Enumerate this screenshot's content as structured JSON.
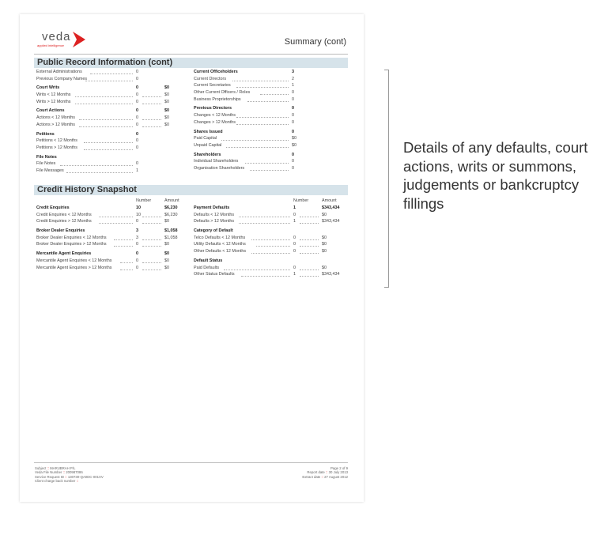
{
  "header": {
    "logo_word": "veda",
    "logo_tag": "applied intelligence",
    "title": "Summary (cont)"
  },
  "public_record": {
    "title": "Public Record Information (cont)",
    "left": [
      {
        "t": "i",
        "label": "External Administrations",
        "n": "0"
      },
      {
        "t": "i",
        "label": "Previous Company Names",
        "n": "0"
      },
      {
        "t": "h",
        "label": "Court Writs",
        "n": "0",
        "a": "$0"
      },
      {
        "t": "i",
        "label": "Writs < 12 Months",
        "n": "0",
        "a": "$0"
      },
      {
        "t": "i",
        "label": "Writs > 12 Months",
        "n": "0",
        "a": "$0"
      },
      {
        "t": "h",
        "label": "Court Actions",
        "n": "0",
        "a": "$0"
      },
      {
        "t": "i",
        "label": "Actions < 12 Months",
        "n": "0",
        "a": "$0"
      },
      {
        "t": "i",
        "label": "Actions > 12 Months",
        "n": "0",
        "a": "$0"
      },
      {
        "t": "h",
        "label": "Petitions",
        "n": "0"
      },
      {
        "t": "i",
        "label": "Petitions < 12 Months",
        "n": "0"
      },
      {
        "t": "i",
        "label": "Petitions > 12 Months",
        "n": "0"
      },
      {
        "t": "h",
        "label": "File Notes"
      },
      {
        "t": "i",
        "label": "File Notes",
        "n": "0"
      },
      {
        "t": "i",
        "label": "File Messages",
        "n": "1"
      }
    ],
    "right": [
      {
        "t": "h",
        "label": "Current Officeholders",
        "n": "3"
      },
      {
        "t": "i",
        "label": "Current Directors",
        "n": "2"
      },
      {
        "t": "i",
        "label": "Current Secretaries",
        "n": "1"
      },
      {
        "t": "i",
        "label": "Other Current Officers / Roles",
        "n": "0"
      },
      {
        "t": "i",
        "label": "Business Proprietorships",
        "n": "0"
      },
      {
        "t": "h",
        "label": "Previous Directors",
        "n": "0"
      },
      {
        "t": "i",
        "label": "Changes < 12 Months",
        "n": "0"
      },
      {
        "t": "i",
        "label": "Changes > 12 Months",
        "n": "0"
      },
      {
        "t": "h",
        "label": "Shares Issued",
        "n": "0"
      },
      {
        "t": "i",
        "label": "Paid Capital",
        "n": "$0"
      },
      {
        "t": "i",
        "label": "Unpaid Capital",
        "n": "$0"
      },
      {
        "t": "h",
        "label": "Shareholders",
        "n": "0"
      },
      {
        "t": "i",
        "label": "Individual Shareholders",
        "n": "0"
      },
      {
        "t": "i",
        "label": "Organisation Shareholders",
        "n": "0"
      }
    ]
  },
  "credit_history": {
    "title": "Credit History Snapshot",
    "col_number": "Number",
    "col_amount": "Amount",
    "left": [
      {
        "t": "h",
        "label": "Credit Enquiries",
        "n": "10",
        "a": "$6,230"
      },
      {
        "t": "i",
        "label": "Credit Enquiries < 12 Months",
        "n": "10",
        "a": "$6,230"
      },
      {
        "t": "i",
        "label": "Credit Enquiries > 12 Months",
        "n": "0",
        "a": "$0"
      },
      {
        "t": "h",
        "label": "Broker Dealer Enquiries",
        "n": "3",
        "a": "$1,058"
      },
      {
        "t": "i",
        "label": "Broker Dealer Enquiries < 12 Months",
        "n": "3",
        "a": "$1,058"
      },
      {
        "t": "i",
        "label": "Broker Dealer Enquiries > 12 Months",
        "n": "0",
        "a": "$0"
      },
      {
        "t": "h",
        "label": "Mercantile Agent Enquiries",
        "n": "0",
        "a": "$0"
      },
      {
        "t": "i",
        "label": "Mercantile Agent Enquiries < 12 Months",
        "n": "0",
        "a": "$0"
      },
      {
        "t": "i",
        "label": "Mercantile Agent Enquiries > 12 Months",
        "n": "0",
        "a": "$0"
      }
    ],
    "right": [
      {
        "t": "h",
        "label": "Payment Defaults",
        "n": "1",
        "a": "$343,434"
      },
      {
        "t": "i",
        "label": "Defaults < 12 Months",
        "n": "0",
        "a": "$0"
      },
      {
        "t": "i",
        "label": "Defaults > 12 Months",
        "n": "1",
        "a": "$343,434"
      },
      {
        "t": "h",
        "label": "Category of Default"
      },
      {
        "t": "i",
        "label": "Telco Defaults < 12 Months",
        "n": "0",
        "a": "$0"
      },
      {
        "t": "i",
        "label": "Utility Defaults < 12 Months",
        "n": "0",
        "a": "$0"
      },
      {
        "t": "i",
        "label": "Other Defaults < 12 Months",
        "n": "0",
        "a": "$0"
      },
      {
        "t": "h",
        "label": "Default Status"
      },
      {
        "t": "i",
        "label": "Paid Defaults",
        "n": "0",
        "a": "$0"
      },
      {
        "t": "i",
        "label": "Other Status Defaults",
        "n": "1",
        "a": "$343,434"
      }
    ]
  },
  "footer": {
    "left": [
      [
        "Subject",
        "MARUBRAH P/L"
      ],
      [
        "Veda File Number",
        "200987086"
      ],
      [
        "Service Request ID",
        "130730-QA0DC-001XV"
      ],
      [
        "Client charge back number",
        ""
      ]
    ],
    "right": [
      [
        "Page 2 of 9",
        ""
      ],
      [
        "Report date",
        "30 July 2013"
      ],
      [
        "Extract date",
        "27 August 2012"
      ]
    ],
    "sep": "::"
  },
  "annotation": {
    "text": "Details of any defaults, court actions, writs or summons, judgements or bankcruptcy fillings"
  },
  "colors": {
    "band": "#d6e3ea",
    "brand_red": "#dd2222"
  }
}
